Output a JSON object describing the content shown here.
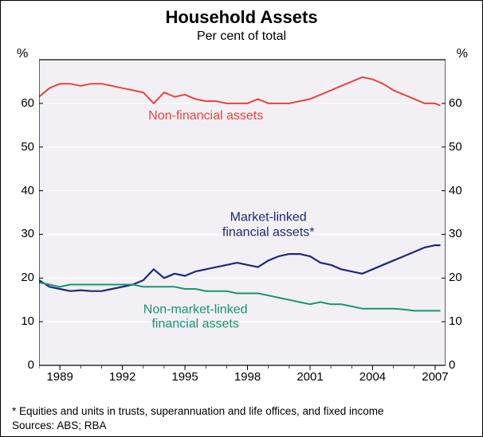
{
  "chart": {
    "type": "line",
    "title": "Household Assets",
    "subtitle": "Per cent of total",
    "title_fontsize": 22,
    "subtitle_fontsize": 16,
    "label_fontsize": 15,
    "series_label_fontsize": 16,
    "background_color": "#ffffff",
    "plot_background_color": "#f2f0f4",
    "border_color": "#000000",
    "grid_color": "#ffffff",
    "y_axis": {
      "unit": "%",
      "min": 0,
      "max": 70,
      "ticks": [
        0,
        10,
        20,
        30,
        40,
        50,
        60
      ],
      "tick_labels": [
        "0",
        "10",
        "20",
        "30",
        "40",
        "50",
        "60"
      ]
    },
    "x_axis": {
      "min": 1988,
      "max": 2007.5,
      "ticks": [
        1989,
        1992,
        1995,
        1998,
        2001,
        2004,
        2007
      ],
      "tick_labels": [
        "1989",
        "1992",
        "1995",
        "1998",
        "2001",
        "2004",
        "2007"
      ]
    },
    "series": [
      {
        "name": "Non-financial assets",
        "label": "Non-financial assets",
        "color": "#e8443e",
        "line_width": 2,
        "label_pos": {
          "x": 1996,
          "y": 57
        },
        "data": [
          [
            1988.0,
            61.5
          ],
          [
            1988.5,
            63.5
          ],
          [
            1989.0,
            64.5
          ],
          [
            1989.5,
            64.5
          ],
          [
            1990.0,
            64.0
          ],
          [
            1990.5,
            64.5
          ],
          [
            1991.0,
            64.5
          ],
          [
            1991.5,
            64.0
          ],
          [
            1992.0,
            63.5
          ],
          [
            1992.5,
            63.0
          ],
          [
            1993.0,
            62.5
          ],
          [
            1993.5,
            60.0
          ],
          [
            1994.0,
            62.5
          ],
          [
            1994.5,
            61.5
          ],
          [
            1995.0,
            62.0
          ],
          [
            1995.5,
            61.0
          ],
          [
            1996.0,
            60.5
          ],
          [
            1996.5,
            60.5
          ],
          [
            1997.0,
            60.0
          ],
          [
            1997.5,
            60.0
          ],
          [
            1998.0,
            60.0
          ],
          [
            1998.5,
            61.0
          ],
          [
            1999.0,
            60.0
          ],
          [
            1999.5,
            60.0
          ],
          [
            2000.0,
            60.0
          ],
          [
            2000.5,
            60.5
          ],
          [
            2001.0,
            61.0
          ],
          [
            2001.5,
            62.0
          ],
          [
            2002.0,
            63.0
          ],
          [
            2002.5,
            64.0
          ],
          [
            2003.0,
            65.0
          ],
          [
            2003.5,
            66.0
          ],
          [
            2004.0,
            65.5
          ],
          [
            2004.5,
            64.5
          ],
          [
            2005.0,
            63.0
          ],
          [
            2005.5,
            62.0
          ],
          [
            2006.0,
            61.0
          ],
          [
            2006.5,
            60.0
          ],
          [
            2007.0,
            60.0
          ],
          [
            2007.25,
            59.5
          ]
        ]
      },
      {
        "name": "Market-linked financial assets",
        "label": "Market-linked\nfinancial assets*",
        "color": "#1a2a7a",
        "line_width": 2.2,
        "label_pos": {
          "x": 1999,
          "y": 32
        },
        "data": [
          [
            1988.0,
            19.5
          ],
          [
            1988.5,
            18.0
          ],
          [
            1989.0,
            17.5
          ],
          [
            1989.5,
            17.0
          ],
          [
            1990.0,
            17.2
          ],
          [
            1990.5,
            17.0
          ],
          [
            1991.0,
            17.0
          ],
          [
            1991.5,
            17.5
          ],
          [
            1992.0,
            18.0
          ],
          [
            1992.5,
            18.5
          ],
          [
            1993.0,
            19.5
          ],
          [
            1993.5,
            22.0
          ],
          [
            1994.0,
            20.0
          ],
          [
            1994.5,
            21.0
          ],
          [
            1995.0,
            20.5
          ],
          [
            1995.5,
            21.5
          ],
          [
            1996.0,
            22.0
          ],
          [
            1996.5,
            22.5
          ],
          [
            1997.0,
            23.0
          ],
          [
            1997.5,
            23.5
          ],
          [
            1998.0,
            23.0
          ],
          [
            1998.5,
            22.5
          ],
          [
            1999.0,
            24.0
          ],
          [
            1999.5,
            25.0
          ],
          [
            2000.0,
            25.5
          ],
          [
            2000.5,
            25.5
          ],
          [
            2001.0,
            25.0
          ],
          [
            2001.5,
            23.5
          ],
          [
            2002.0,
            23.0
          ],
          [
            2002.5,
            22.0
          ],
          [
            2003.0,
            21.5
          ],
          [
            2003.5,
            21.0
          ],
          [
            2004.0,
            22.0
          ],
          [
            2004.5,
            23.0
          ],
          [
            2005.0,
            24.0
          ],
          [
            2005.5,
            25.0
          ],
          [
            2006.0,
            26.0
          ],
          [
            2006.5,
            27.0
          ],
          [
            2007.0,
            27.5
          ],
          [
            2007.25,
            27.5
          ]
        ]
      },
      {
        "name": "Non-market-linked financial assets",
        "label": "Non-market-linked\nfinancial assets",
        "color": "#179474",
        "line_width": 2,
        "label_pos": {
          "x": 1995.5,
          "y": 11
        },
        "data": [
          [
            1988.0,
            19.0
          ],
          [
            1988.5,
            18.5
          ],
          [
            1989.0,
            18.0
          ],
          [
            1989.5,
            18.5
          ],
          [
            1990.0,
            18.5
          ],
          [
            1990.5,
            18.5
          ],
          [
            1991.0,
            18.5
          ],
          [
            1991.5,
            18.5
          ],
          [
            1992.0,
            18.5
          ],
          [
            1992.5,
            18.5
          ],
          [
            1993.0,
            18.0
          ],
          [
            1993.5,
            18.0
          ],
          [
            1994.0,
            18.0
          ],
          [
            1994.5,
            18.0
          ],
          [
            1995.0,
            17.5
          ],
          [
            1995.5,
            17.5
          ],
          [
            1996.0,
            17.0
          ],
          [
            1996.5,
            17.0
          ],
          [
            1997.0,
            17.0
          ],
          [
            1997.5,
            16.5
          ],
          [
            1998.0,
            16.5
          ],
          [
            1998.5,
            16.5
          ],
          [
            1999.0,
            16.0
          ],
          [
            1999.5,
            15.5
          ],
          [
            2000.0,
            15.0
          ],
          [
            2000.5,
            14.5
          ],
          [
            2001.0,
            14.0
          ],
          [
            2001.5,
            14.5
          ],
          [
            2002.0,
            14.0
          ],
          [
            2002.5,
            14.0
          ],
          [
            2003.0,
            13.5
          ],
          [
            2003.5,
            13.0
          ],
          [
            2004.0,
            13.0
          ],
          [
            2004.5,
            13.0
          ],
          [
            2005.0,
            13.0
          ],
          [
            2005.5,
            12.8
          ],
          [
            2006.0,
            12.5
          ],
          [
            2006.5,
            12.5
          ],
          [
            2007.0,
            12.5
          ],
          [
            2007.25,
            12.5
          ]
        ]
      }
    ],
    "footnote": "*  Equities and units in trusts, superannuation and life offices, and fixed income",
    "sources": "Sources: ABS; RBA"
  }
}
